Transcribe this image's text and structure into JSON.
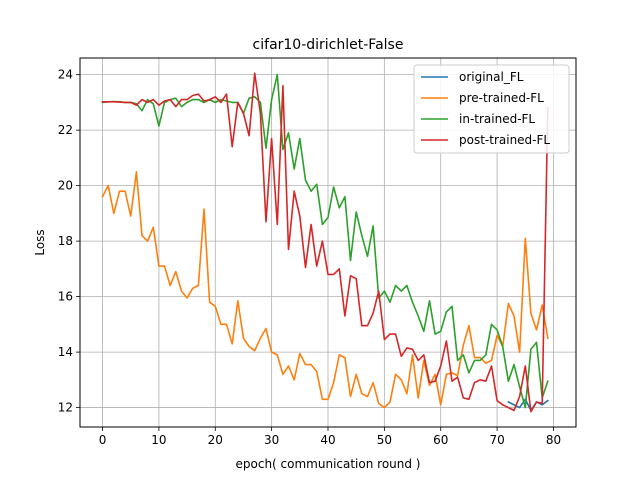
{
  "chart_data": {
    "type": "line",
    "title": "cifar10-dirichlet-False",
    "xlabel": "epoch( communication round )",
    "ylabel": "Loss",
    "xlim": [
      -4,
      84
    ],
    "ylim": [
      11.3,
      24.6
    ],
    "xticks": [
      0,
      10,
      20,
      30,
      40,
      50,
      60,
      70,
      80
    ],
    "yticks": [
      12,
      14,
      16,
      18,
      20,
      22,
      24
    ],
    "grid": true,
    "legend_position": "top-right",
    "series": [
      {
        "name": "original_FL",
        "color": "#1f77b4",
        "x": [
          72,
          73,
          74,
          75,
          76,
          77,
          78,
          79
        ],
        "y": [
          12.2,
          12.1,
          12.0,
          12.3,
          11.9,
          12.2,
          12.1,
          12.25
        ]
      },
      {
        "name": "pre-trained-FL",
        "color": "#ff7f0e",
        "x": [
          0,
          1,
          2,
          3,
          4,
          5,
          6,
          7,
          8,
          9,
          10,
          11,
          12,
          13,
          14,
          15,
          16,
          17,
          18,
          19,
          20,
          21,
          22,
          23,
          24,
          25,
          26,
          27,
          28,
          29,
          30,
          31,
          32,
          33,
          34,
          35,
          36,
          37,
          38,
          39,
          40,
          41,
          42,
          43,
          44,
          45,
          46,
          47,
          48,
          49,
          50,
          51,
          52,
          53,
          54,
          55,
          56,
          57,
          58,
          59,
          60,
          61,
          62,
          63,
          64,
          65,
          66,
          67,
          68,
          69,
          70,
          71,
          72,
          73,
          74,
          75,
          76,
          77,
          78,
          79
        ],
        "y": [
          19.6,
          20.0,
          19.0,
          19.8,
          19.8,
          18.9,
          20.5,
          18.2,
          18.0,
          18.5,
          17.1,
          17.1,
          16.4,
          16.9,
          16.2,
          15.95,
          16.3,
          16.4,
          19.15,
          15.8,
          15.65,
          15.0,
          15.0,
          14.3,
          15.85,
          14.5,
          14.2,
          14.05,
          14.5,
          14.85,
          14.0,
          13.9,
          13.2,
          13.5,
          13.0,
          13.95,
          13.55,
          13.55,
          13.3,
          12.3,
          12.3,
          12.9,
          13.9,
          13.8,
          12.4,
          13.2,
          12.5,
          12.4,
          12.9,
          12.15,
          12.0,
          12.2,
          13.2,
          13.0,
          12.5,
          13.9,
          12.35,
          13.7,
          12.8,
          13.2,
          12.1,
          13.2,
          13.25,
          13.15,
          14.25,
          14.95,
          13.8,
          13.8,
          13.6,
          13.7,
          14.6,
          14.2,
          15.75,
          15.3,
          14.0,
          18.1,
          15.4,
          14.8,
          15.7,
          14.5
        ]
      },
      {
        "name": "in-trained-FL",
        "color": "#2ca02c",
        "x": [
          0,
          1,
          2,
          3,
          4,
          5,
          6,
          7,
          8,
          9,
          10,
          11,
          12,
          13,
          14,
          15,
          16,
          17,
          18,
          19,
          20,
          21,
          22,
          23,
          24,
          25,
          26,
          27,
          28,
          29,
          30,
          31,
          32,
          33,
          34,
          35,
          36,
          37,
          38,
          39,
          40,
          41,
          42,
          43,
          44,
          45,
          46,
          47,
          48,
          49,
          50,
          51,
          52,
          53,
          54,
          55,
          56,
          57,
          58,
          59,
          60,
          61,
          62,
          63,
          64,
          65,
          66,
          67,
          68,
          69,
          70,
          71,
          72,
          73,
          74,
          75,
          76,
          77,
          78,
          79
        ],
        "y": [
          23.0,
          23.02,
          23.03,
          23.02,
          23.0,
          23.0,
          22.95,
          22.7,
          23.1,
          22.95,
          22.15,
          23.0,
          23.1,
          23.15,
          22.85,
          23.0,
          23.1,
          23.1,
          23.0,
          23.1,
          23.0,
          23.1,
          23.05,
          23.0,
          23.0,
          22.6,
          23.15,
          23.2,
          23.0,
          21.35,
          23.1,
          24.0,
          21.3,
          21.9,
          20.6,
          21.7,
          20.2,
          19.8,
          20.05,
          18.6,
          18.85,
          19.95,
          19.2,
          19.6,
          17.3,
          19.05,
          18.2,
          17.45,
          18.55,
          15.95,
          16.2,
          15.8,
          16.4,
          16.2,
          16.4,
          15.8,
          15.3,
          14.75,
          15.85,
          14.65,
          14.75,
          15.45,
          15.65,
          13.7,
          13.9,
          13.25,
          13.7,
          13.7,
          13.9,
          15.0,
          14.8,
          14.2,
          12.95,
          13.55,
          12.75,
          12.0,
          14.1,
          14.35,
          12.35,
          12.95
        ]
      },
      {
        "name": "post-trained-FL",
        "color": "#d62728",
        "x": [
          0,
          1,
          2,
          3,
          4,
          5,
          6,
          7,
          8,
          9,
          10,
          11,
          12,
          13,
          14,
          15,
          16,
          17,
          18,
          19,
          20,
          21,
          22,
          23,
          24,
          25,
          26,
          27,
          28,
          29,
          30,
          31,
          32,
          33,
          34,
          35,
          36,
          37,
          38,
          39,
          40,
          41,
          42,
          43,
          44,
          45,
          46,
          47,
          48,
          49,
          50,
          51,
          52,
          53,
          54,
          55,
          56,
          57,
          58,
          59,
          60,
          61,
          62,
          63,
          64,
          65,
          66,
          67,
          68,
          69,
          70,
          71,
          72,
          73,
          74,
          75,
          76,
          77,
          78,
          79
        ],
        "y": [
          23.02,
          23.02,
          23.02,
          23.01,
          23.0,
          23.0,
          22.9,
          23.1,
          23.0,
          23.1,
          22.9,
          23.05,
          23.1,
          22.85,
          23.1,
          23.1,
          23.25,
          23.3,
          23.05,
          23.1,
          23.2,
          23.0,
          23.3,
          21.4,
          23.0,
          22.6,
          21.8,
          24.05,
          22.6,
          18.7,
          21.7,
          18.6,
          23.6,
          17.7,
          19.8,
          18.9,
          17.05,
          18.6,
          17.1,
          18.0,
          16.8,
          16.8,
          17.0,
          15.3,
          16.75,
          16.65,
          14.95,
          14.95,
          15.4,
          16.2,
          14.45,
          14.65,
          14.65,
          13.85,
          14.15,
          14.1,
          13.7,
          13.9,
          12.9,
          12.95,
          13.5,
          14.4,
          12.95,
          13.1,
          12.35,
          12.3,
          12.9,
          13.0,
          12.95,
          13.5,
          12.25,
          12.1,
          12.0,
          11.9,
          12.4,
          13.5,
          11.85,
          12.2,
          12.15,
          22.8
        ]
      }
    ]
  }
}
